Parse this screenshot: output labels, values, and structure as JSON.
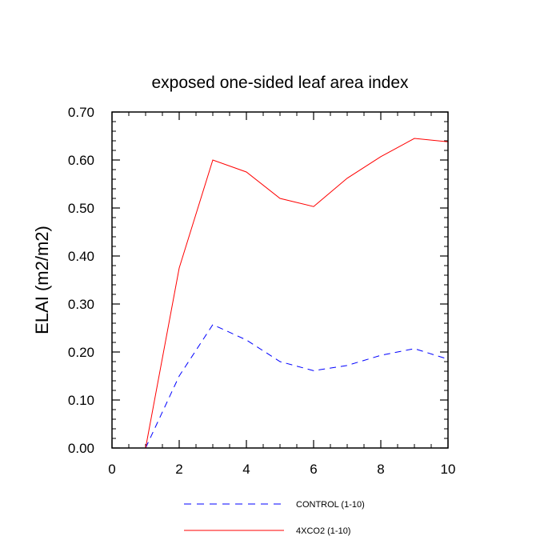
{
  "chart_data": {
    "type": "line",
    "title": "exposed one-sided leaf area index",
    "xlabel": "",
    "ylabel": "ELAI  (m2/m2)",
    "xlim": [
      0,
      10
    ],
    "ylim": [
      0,
      0.7
    ],
    "x_ticks": [
      0,
      2,
      4,
      6,
      8,
      10
    ],
    "x_tick_labels": [
      "0",
      "2",
      "4",
      "6",
      "8",
      "10"
    ],
    "y_ticks": [
      0,
      0.1,
      0.2,
      0.3,
      0.4,
      0.5,
      0.6,
      0.7
    ],
    "y_tick_labels": [
      "0.00",
      "0.10",
      "0.20",
      "0.30",
      "0.40",
      "0.50",
      "0.60",
      "0.70"
    ],
    "grid": false,
    "legend_position": "bottom",
    "series": [
      {
        "name": "CONTROL (1-10)",
        "color": "#0000ff",
        "dash": "dashed",
        "x": [
          1,
          2,
          3,
          4,
          5,
          6,
          7,
          8,
          9,
          10
        ],
        "values": [
          0.0,
          0.15,
          0.257,
          0.225,
          0.18,
          0.161,
          0.172,
          0.193,
          0.207,
          0.185
        ]
      },
      {
        "name": "4XCO2 (1-10)",
        "color": "#ff0000",
        "dash": "solid",
        "x": [
          1,
          2,
          3,
          4,
          5,
          6,
          7,
          8,
          9,
          10
        ],
        "values": [
          0.0,
          0.375,
          0.6,
          0.575,
          0.52,
          0.503,
          0.562,
          0.607,
          0.645,
          0.638
        ]
      }
    ]
  }
}
